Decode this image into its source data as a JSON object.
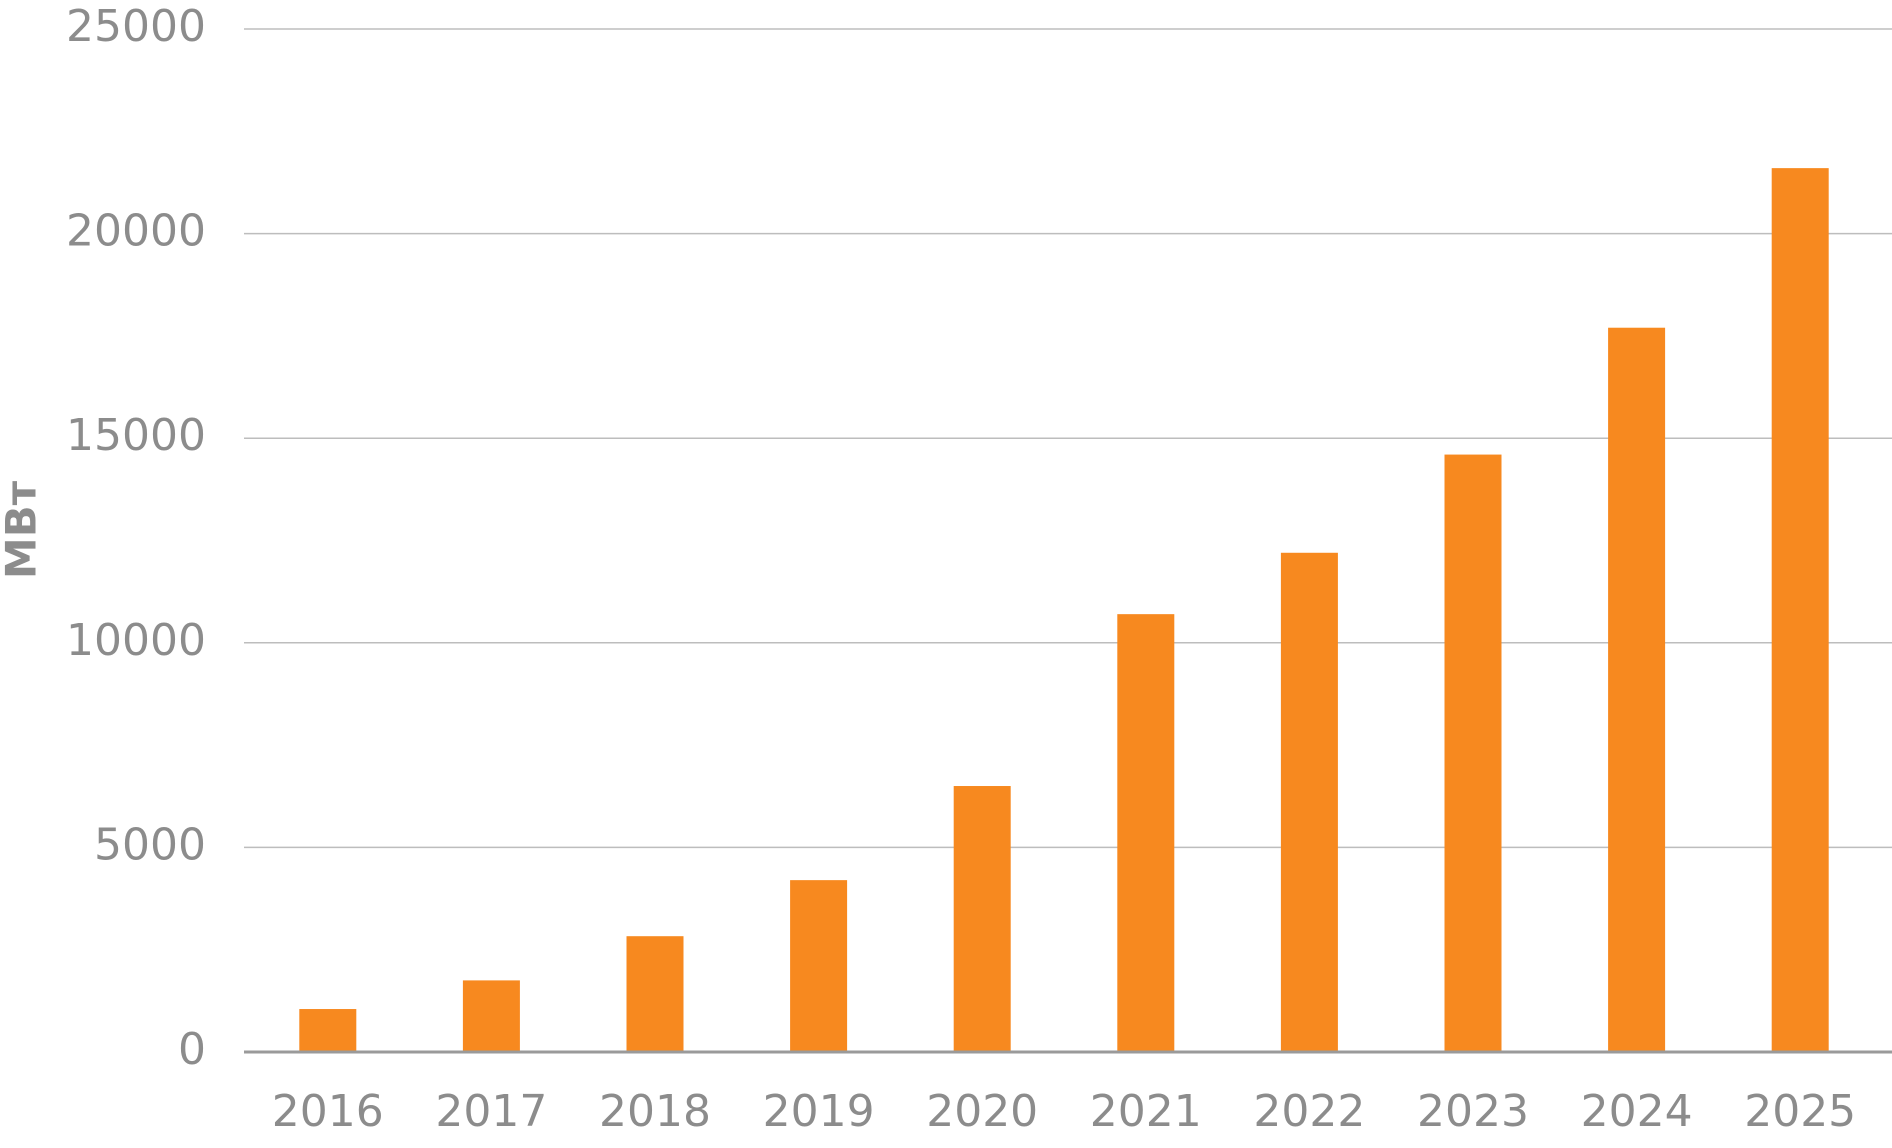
{
  "chart_data": {
    "type": "bar",
    "y_label": "МВт",
    "categories": [
      "2016",
      "2017",
      "2018",
      "2019",
      "2020",
      "2021",
      "2022",
      "2023",
      "2024",
      "2025"
    ],
    "values": [
      1050,
      1750,
      2830,
      4200,
      6500,
      10700,
      12200,
      14600,
      17700,
      21600
    ],
    "color": "#f7891f",
    "ylim": [
      0,
      25000
    ],
    "yticks": [
      0,
      5000,
      10000,
      15000,
      20000,
      25000
    ],
    "grid": true
  }
}
